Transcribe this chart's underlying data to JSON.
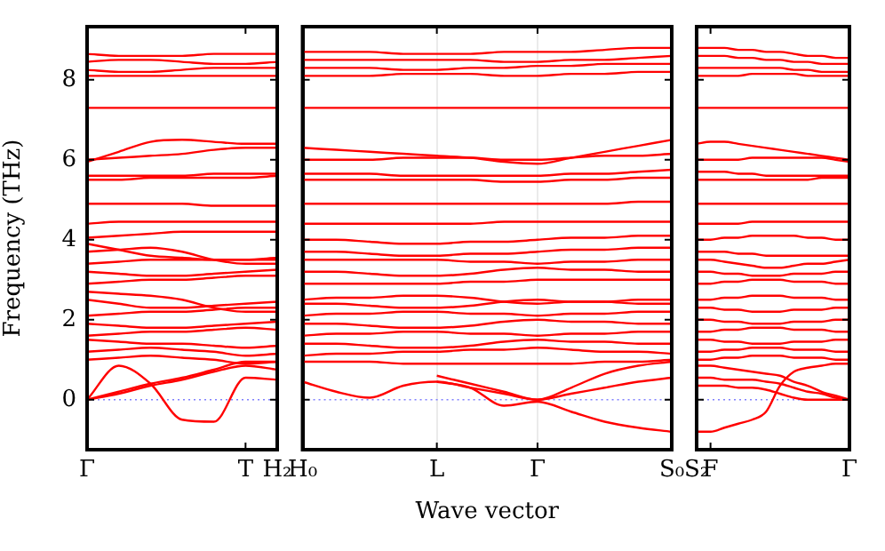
{
  "chart_data": [
    {
      "type": "line",
      "ylabel": "Frequency (THz)",
      "categories": [
        "Γ",
        null,
        null,
        null,
        null,
        "T",
        "H₂"
      ],
      "ylim": [
        -1.25,
        9.33
      ],
      "yticks": [
        0,
        2,
        4,
        6,
        8
      ],
      "legend": false,
      "line_style": "solid",
      "ref_lines": [
        {
          "axis": "y",
          "value": 0,
          "color": "#8080ff",
          "line_style": "dotted"
        }
      ],
      "series": [
        {
          "color": "#ff0000",
          "values": [
            0,
            0.85,
            0.4,
            -0.5,
            -0.55,
            0.55,
            0.5
          ]
        },
        {
          "color": "#ff0000",
          "values": [
            0,
            0.15,
            0.35,
            0.5,
            0.7,
            0.85,
            0.75
          ]
        },
        {
          "color": "#ff0000",
          "values": [
            0,
            0.2,
            0.4,
            0.55,
            0.75,
            0.95,
            0.95
          ]
        },
        {
          "color": "#ff0000",
          "values": [
            1.0,
            1.05,
            1.1,
            1.05,
            1.0,
            0.9,
            0.95
          ]
        },
        {
          "color": "#ff0000",
          "values": [
            1.2,
            1.25,
            1.3,
            1.25,
            1.2,
            1.1,
            1.15
          ]
        },
        {
          "color": "#ff0000",
          "values": [
            1.5,
            1.45,
            1.4,
            1.4,
            1.35,
            1.3,
            1.35
          ]
        },
        {
          "color": "#ff0000",
          "values": [
            1.6,
            1.65,
            1.7,
            1.7,
            1.75,
            1.8,
            1.75
          ]
        },
        {
          "color": "#ff0000",
          "values": [
            1.9,
            1.85,
            1.8,
            1.8,
            1.85,
            1.9,
            1.95
          ]
        },
        {
          "color": "#ff0000",
          "values": [
            2.1,
            2.15,
            2.2,
            2.2,
            2.25,
            2.3,
            2.3
          ]
        },
        {
          "color": "#ff0000",
          "values": [
            2.5,
            2.4,
            2.3,
            2.3,
            2.35,
            2.4,
            2.45
          ]
        },
        {
          "color": "#ff0000",
          "values": [
            2.7,
            2.65,
            2.6,
            2.5,
            2.3,
            2.2,
            2.2
          ]
        },
        {
          "color": "#ff0000",
          "values": [
            2.9,
            2.95,
            3.0,
            3.0,
            3.05,
            3.1,
            3.1
          ]
        },
        {
          "color": "#ff0000",
          "values": [
            3.2,
            3.15,
            3.1,
            3.1,
            3.15,
            3.2,
            3.25
          ]
        },
        {
          "color": "#ff0000",
          "values": [
            3.4,
            3.45,
            3.5,
            3.5,
            3.5,
            3.5,
            3.5
          ]
        },
        {
          "color": "#ff0000",
          "values": [
            3.7,
            3.75,
            3.8,
            3.7,
            3.5,
            3.4,
            3.4
          ]
        },
        {
          "color": "#ff0000",
          "values": [
            3.9,
            3.75,
            3.6,
            3.55,
            3.5,
            3.5,
            3.55
          ]
        },
        {
          "color": "#ff0000",
          "values": [
            4.05,
            4.1,
            4.15,
            4.2,
            4.2,
            4.2,
            4.2
          ]
        },
        {
          "color": "#ff0000",
          "values": [
            4.4,
            4.45,
            4.45,
            4.45,
            4.45,
            4.45,
            4.45
          ]
        },
        {
          "color": "#ff0000",
          "values": [
            4.9,
            4.9,
            4.9,
            4.9,
            4.85,
            4.85,
            4.85
          ]
        },
        {
          "color": "#ff0000",
          "values": [
            5.5,
            5.5,
            5.55,
            5.55,
            5.55,
            5.55,
            5.6
          ]
        },
        {
          "color": "#ff0000",
          "values": [
            5.6,
            5.6,
            5.6,
            5.6,
            5.65,
            5.65,
            5.65
          ]
        },
        {
          "color": "#ff0000",
          "values": [
            5.95,
            6.2,
            6.45,
            6.5,
            6.45,
            6.4,
            6.4
          ]
        },
        {
          "color": "#ff0000",
          "values": [
            6.0,
            6.05,
            6.1,
            6.15,
            6.25,
            6.3,
            6.3
          ]
        },
        {
          "color": "#ff0000",
          "values": [
            7.3,
            7.3,
            7.3,
            7.3,
            7.3,
            7.3,
            7.3
          ]
        },
        {
          "color": "#ff0000",
          "values": [
            8.1,
            8.1,
            8.1,
            8.1,
            8.1,
            8.1,
            8.1
          ]
        },
        {
          "color": "#ff0000",
          "values": [
            8.25,
            8.2,
            8.2,
            8.25,
            8.3,
            8.3,
            8.3
          ]
        },
        {
          "color": "#ff0000",
          "values": [
            8.45,
            8.5,
            8.5,
            8.45,
            8.4,
            8.4,
            8.45
          ]
        },
        {
          "color": "#ff0000",
          "values": [
            8.65,
            8.6,
            8.6,
            8.6,
            8.65,
            8.65,
            8.65
          ]
        }
      ]
    },
    {
      "type": "line",
      "xlabel": "Wave vector",
      "categories": [
        "H₀",
        null,
        null,
        null,
        "L",
        null,
        null,
        "Γ",
        null,
        null,
        null,
        "S₀"
      ],
      "ylim": [
        -1.25,
        9.33
      ],
      "yticks": [
        0,
        2,
        4,
        6,
        8
      ],
      "tick_labels": "x",
      "grid": "x",
      "legend": false,
      "line_style": "solid",
      "ref_lines": [
        {
          "axis": "y",
          "value": 0,
          "color": "#8080ff",
          "line_style": "dotted"
        }
      ],
      "series": [
        {
          "color": "#ff0000",
          "values": [
            0.45,
            0.2,
            0.05,
            0.35,
            0.45,
            0.3,
            0.15,
            0,
            0.3,
            0.65,
            0.85,
            0.95
          ]
        },
        {
          "color": "#ff0000",
          "values": [
            null,
            null,
            null,
            null,
            0.45,
            0.3,
            -0.15,
            -0.05,
            -0.3,
            -0.55,
            -0.7,
            -0.8
          ]
        },
        {
          "color": "#ff0000",
          "values": [
            null,
            null,
            null,
            null,
            0.6,
            0.4,
            0.2,
            0,
            0.15,
            0.3,
            0.45,
            0.55
          ]
        },
        {
          "color": "#ff0000",
          "values": [
            0.95,
            0.95,
            0.95,
            0.9,
            0.9,
            0.9,
            0.9,
            0.9,
            0.9,
            0.95,
            0.95,
            1.0
          ]
        },
        {
          "color": "#ff0000",
          "values": [
            1.1,
            1.15,
            1.15,
            1.2,
            1.2,
            1.25,
            1.25,
            1.3,
            1.25,
            1.2,
            1.2,
            1.15
          ]
        },
        {
          "color": "#ff0000",
          "values": [
            1.4,
            1.4,
            1.35,
            1.3,
            1.3,
            1.35,
            1.45,
            1.5,
            1.45,
            1.45,
            1.4,
            1.4
          ]
        },
        {
          "color": "#ff0000",
          "values": [
            1.6,
            1.65,
            1.65,
            1.7,
            1.7,
            1.65,
            1.65,
            1.6,
            1.65,
            1.65,
            1.7,
            1.7
          ]
        },
        {
          "color": "#ff0000",
          "values": [
            1.9,
            1.9,
            1.85,
            1.8,
            1.8,
            1.85,
            1.95,
            2.0,
            1.95,
            1.95,
            1.9,
            1.9
          ]
        },
        {
          "color": "#ff0000",
          "values": [
            2.1,
            2.15,
            2.15,
            2.2,
            2.2,
            2.15,
            2.15,
            2.1,
            2.15,
            2.15,
            2.2,
            2.2
          ]
        },
        {
          "color": "#ff0000",
          "values": [
            2.4,
            2.4,
            2.35,
            2.3,
            2.3,
            2.35,
            2.45,
            2.5,
            2.45,
            2.45,
            2.4,
            2.4
          ]
        },
        {
          "color": "#ff0000",
          "values": [
            2.5,
            2.55,
            2.55,
            2.6,
            2.6,
            2.55,
            2.45,
            2.4,
            2.45,
            2.45,
            2.5,
            2.5
          ]
        },
        {
          "color": "#ff0000",
          "values": [
            2.9,
            2.9,
            2.9,
            2.9,
            2.9,
            2.95,
            2.95,
            3.0,
            3.0,
            3.0,
            3.0,
            3.0
          ]
        },
        {
          "color": "#ff0000",
          "values": [
            3.2,
            3.2,
            3.15,
            3.1,
            3.1,
            3.15,
            3.25,
            3.3,
            3.25,
            3.25,
            3.2,
            3.2
          ]
        },
        {
          "color": "#ff0000",
          "values": [
            3.5,
            3.5,
            3.5,
            3.5,
            3.5,
            3.45,
            3.45,
            3.4,
            3.45,
            3.45,
            3.5,
            3.5
          ]
        },
        {
          "color": "#ff0000",
          "values": [
            3.7,
            3.7,
            3.65,
            3.6,
            3.6,
            3.65,
            3.65,
            3.7,
            3.75,
            3.75,
            3.8,
            3.8
          ]
        },
        {
          "color": "#ff0000",
          "values": [
            4.0,
            4.0,
            3.95,
            3.9,
            3.9,
            3.95,
            3.95,
            4.0,
            4.05,
            4.05,
            4.1,
            4.1
          ]
        },
        {
          "color": "#ff0000",
          "values": [
            4.4,
            4.4,
            4.4,
            4.4,
            4.4,
            4.4,
            4.45,
            4.45,
            4.45,
            4.45,
            4.45,
            4.45
          ]
        },
        {
          "color": "#ff0000",
          "values": [
            4.9,
            4.9,
            4.9,
            4.9,
            4.9,
            4.9,
            4.9,
            4.9,
            4.9,
            4.9,
            4.95,
            4.95
          ]
        },
        {
          "color": "#ff0000",
          "values": [
            5.5,
            5.5,
            5.5,
            5.5,
            5.5,
            5.5,
            5.45,
            5.45,
            5.5,
            5.5,
            5.55,
            5.55
          ]
        },
        {
          "color": "#ff0000",
          "values": [
            5.65,
            5.65,
            5.65,
            5.6,
            5.6,
            5.6,
            5.6,
            5.6,
            5.65,
            5.65,
            5.7,
            5.75
          ]
        },
        {
          "color": "#ff0000",
          "values": [
            6.3,
            6.25,
            6.2,
            6.15,
            6.1,
            6.05,
            5.95,
            5.9,
            6.05,
            6.2,
            6.35,
            6.5
          ]
        },
        {
          "color": "#ff0000",
          "values": [
            6.0,
            6.0,
            6.0,
            6.05,
            6.05,
            6.05,
            6.0,
            6.0,
            6.05,
            6.1,
            6.1,
            6.15
          ]
        },
        {
          "color": "#ff0000",
          "values": [
            7.3,
            7.3,
            7.3,
            7.3,
            7.3,
            7.3,
            7.3,
            7.3,
            7.3,
            7.3,
            7.3,
            7.3
          ]
        },
        {
          "color": "#ff0000",
          "values": [
            8.1,
            8.1,
            8.1,
            8.15,
            8.15,
            8.15,
            8.1,
            8.1,
            8.15,
            8.15,
            8.2,
            8.2
          ]
        },
        {
          "color": "#ff0000",
          "values": [
            8.3,
            8.3,
            8.3,
            8.25,
            8.25,
            8.3,
            8.3,
            8.35,
            8.35,
            8.4,
            8.4,
            8.4
          ]
        },
        {
          "color": "#ff0000",
          "values": [
            8.5,
            8.5,
            8.5,
            8.5,
            8.5,
            8.5,
            8.45,
            8.45,
            8.5,
            8.5,
            8.55,
            8.6
          ]
        },
        {
          "color": "#ff0000",
          "values": [
            8.7,
            8.7,
            8.7,
            8.65,
            8.65,
            8.65,
            8.7,
            8.7,
            8.7,
            8.75,
            8.8,
            8.8
          ]
        }
      ]
    },
    {
      "type": "line",
      "categories": [
        "S₂",
        "F",
        null,
        null,
        null,
        null,
        null,
        null,
        null,
        null,
        null,
        "Γ"
      ],
      "ylim": [
        -1.25,
        9.33
      ],
      "yticks": [
        0,
        2,
        4,
        6,
        8
      ],
      "tick_labels": "x",
      "legend": false,
      "line_style": "solid",
      "ref_lines": [
        {
          "axis": "y",
          "value": 0,
          "color": "#8080ff",
          "line_style": "dotted"
        }
      ],
      "series": [
        {
          "color": "#ff0000",
          "values": [
            -0.8,
            -0.8,
            -0.7,
            -0.6,
            -0.5,
            -0.3,
            0.35,
            0.7,
            0.8,
            0.85,
            0.9,
            0.9
          ]
        },
        {
          "color": "#ff0000",
          "values": [
            0.35,
            0.35,
            0.35,
            0.3,
            0.3,
            0.25,
            0.15,
            0.05,
            0,
            0,
            0,
            0
          ]
        },
        {
          "color": "#ff0000",
          "values": [
            0.55,
            0.55,
            0.5,
            0.5,
            0.5,
            0.45,
            0.4,
            0.3,
            0.2,
            0.15,
            0.05,
            0
          ]
        },
        {
          "color": "#ff0000",
          "values": [
            0.85,
            0.85,
            0.8,
            0.75,
            0.7,
            0.65,
            0.6,
            0.45,
            0.35,
            0.2,
            0.1,
            0
          ]
        },
        {
          "color": "#ff0000",
          "values": [
            1.0,
            1.0,
            1.05,
            1.05,
            1.1,
            1.1,
            1.1,
            1.05,
            1.05,
            1.05,
            1.0,
            1.0
          ]
        },
        {
          "color": "#ff0000",
          "values": [
            1.2,
            1.2,
            1.25,
            1.25,
            1.3,
            1.3,
            1.3,
            1.25,
            1.25,
            1.25,
            1.2,
            1.2
          ]
        },
        {
          "color": "#ff0000",
          "values": [
            1.5,
            1.5,
            1.45,
            1.45,
            1.4,
            1.4,
            1.4,
            1.45,
            1.45,
            1.45,
            1.5,
            1.5
          ]
        },
        {
          "color": "#ff0000",
          "values": [
            1.7,
            1.7,
            1.75,
            1.75,
            1.8,
            1.8,
            1.8,
            1.75,
            1.75,
            1.75,
            1.7,
            1.7
          ]
        },
        {
          "color": "#ff0000",
          "values": [
            2.0,
            2.0,
            1.95,
            1.95,
            1.9,
            1.9,
            1.9,
            1.95,
            1.95,
            1.95,
            2.0,
            2.0
          ]
        },
        {
          "color": "#ff0000",
          "values": [
            2.3,
            2.3,
            2.25,
            2.25,
            2.2,
            2.2,
            2.2,
            2.25,
            2.25,
            2.25,
            2.3,
            2.3
          ]
        },
        {
          "color": "#ff0000",
          "values": [
            2.5,
            2.5,
            2.55,
            2.55,
            2.6,
            2.6,
            2.6,
            2.55,
            2.55,
            2.55,
            2.5,
            2.5
          ]
        },
        {
          "color": "#ff0000",
          "values": [
            2.9,
            2.9,
            2.95,
            2.95,
            3.0,
            3.0,
            3.0,
            2.95,
            2.95,
            2.95,
            2.9,
            2.9
          ]
        },
        {
          "color": "#ff0000",
          "values": [
            3.2,
            3.2,
            3.15,
            3.15,
            3.1,
            3.1,
            3.1,
            3.15,
            3.15,
            3.15,
            3.2,
            3.2
          ]
        },
        {
          "color": "#ff0000",
          "values": [
            3.5,
            3.5,
            3.45,
            3.4,
            3.35,
            3.3,
            3.3,
            3.35,
            3.4,
            3.4,
            3.45,
            3.5
          ]
        },
        {
          "color": "#ff0000",
          "values": [
            3.7,
            3.7,
            3.7,
            3.65,
            3.65,
            3.6,
            3.6,
            3.6,
            3.6,
            3.6,
            3.6,
            3.6
          ]
        },
        {
          "color": "#ff0000",
          "values": [
            4.0,
            4.0,
            4.05,
            4.05,
            4.1,
            4.1,
            4.1,
            4.1,
            4.05,
            4.05,
            4.0,
            4.0
          ]
        },
        {
          "color": "#ff0000",
          "values": [
            4.4,
            4.4,
            4.4,
            4.4,
            4.45,
            4.45,
            4.45,
            4.45,
            4.45,
            4.45,
            4.45,
            4.45
          ]
        },
        {
          "color": "#ff0000",
          "values": [
            4.9,
            4.9,
            4.9,
            4.9,
            4.9,
            4.9,
            4.9,
            4.9,
            4.9,
            4.9,
            4.9,
            4.9
          ]
        },
        {
          "color": "#ff0000",
          "values": [
            5.5,
            5.5,
            5.5,
            5.5,
            5.5,
            5.5,
            5.5,
            5.5,
            5.5,
            5.55,
            5.55,
            5.55
          ]
        },
        {
          "color": "#ff0000",
          "values": [
            5.7,
            5.7,
            5.7,
            5.65,
            5.65,
            5.6,
            5.6,
            5.6,
            5.6,
            5.6,
            5.6,
            5.6
          ]
        },
        {
          "color": "#ff0000",
          "values": [
            6.4,
            6.45,
            6.45,
            6.4,
            6.35,
            6.3,
            6.25,
            6.2,
            6.15,
            6.1,
            6.05,
            6.0
          ]
        },
        {
          "color": "#ff0000",
          "values": [
            6.0,
            6.0,
            6.0,
            6.0,
            6.05,
            6.05,
            6.05,
            6.05,
            6.05,
            6.05,
            6.0,
            5.95
          ]
        },
        {
          "color": "#ff0000",
          "values": [
            7.3,
            7.3,
            7.3,
            7.3,
            7.3,
            7.3,
            7.3,
            7.3,
            7.3,
            7.3,
            7.3,
            7.3
          ]
        },
        {
          "color": "#ff0000",
          "values": [
            8.1,
            8.1,
            8.1,
            8.1,
            8.15,
            8.15,
            8.15,
            8.15,
            8.1,
            8.1,
            8.1,
            8.1
          ]
        },
        {
          "color": "#ff0000",
          "values": [
            8.3,
            8.3,
            8.3,
            8.3,
            8.3,
            8.3,
            8.3,
            8.25,
            8.25,
            8.2,
            8.2,
            8.2
          ]
        },
        {
          "color": "#ff0000",
          "values": [
            8.6,
            8.6,
            8.6,
            8.55,
            8.55,
            8.5,
            8.5,
            8.45,
            8.45,
            8.4,
            8.4,
            8.4
          ]
        },
        {
          "color": "#ff0000",
          "values": [
            8.8,
            8.8,
            8.8,
            8.75,
            8.75,
            8.7,
            8.7,
            8.65,
            8.6,
            8.6,
            8.55,
            8.55
          ]
        }
      ]
    }
  ]
}
